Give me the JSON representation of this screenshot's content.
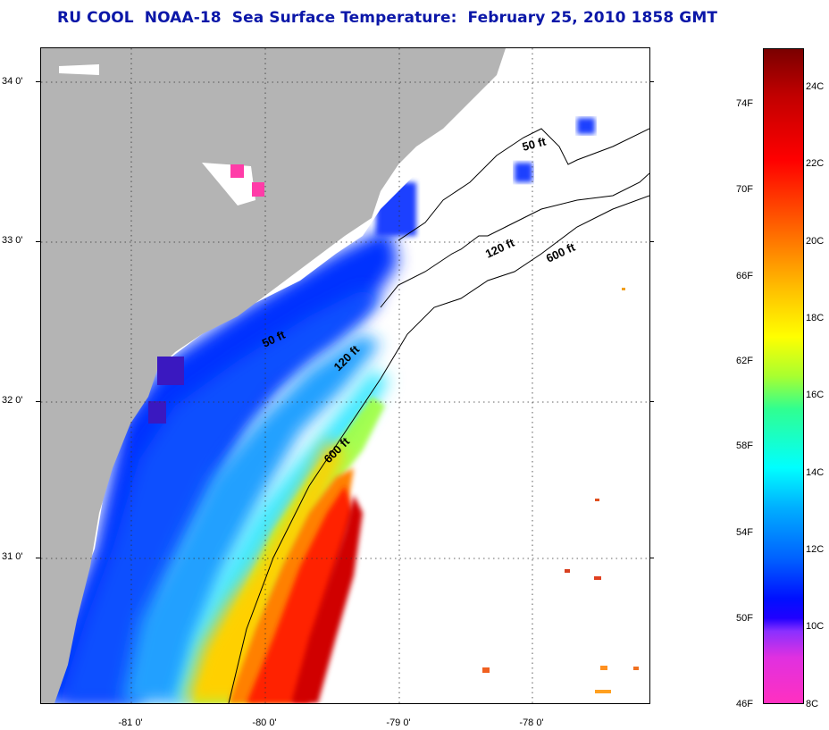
{
  "title": "RU COOL  NOAA-18  Sea Surface Temperature:  February 25, 2010 1858 GMT",
  "latitude_labels": [
    "34 0'",
    "33 0'",
    "32 0'",
    "31 0'"
  ],
  "longitude_labels": [
    "-81 0'",
    "-80 0'",
    "-79 0'",
    "-78 0'"
  ],
  "isobath_labels": [
    "50 ft",
    "120 ft",
    "600 ft"
  ],
  "colorbar": {
    "fahrenheit_labels": [
      "74F",
      "70F",
      "66F",
      "62F",
      "58F",
      "54F",
      "50F",
      "46F"
    ],
    "celsius_labels": [
      "24C",
      "22C",
      "20C",
      "18C",
      "16C",
      "14C",
      "12C",
      "10C",
      "8C"
    ]
  },
  "colors": {
    "land": "#b4b4b4",
    "title": "#0b17a8",
    "no_data": "#ffffff"
  }
}
